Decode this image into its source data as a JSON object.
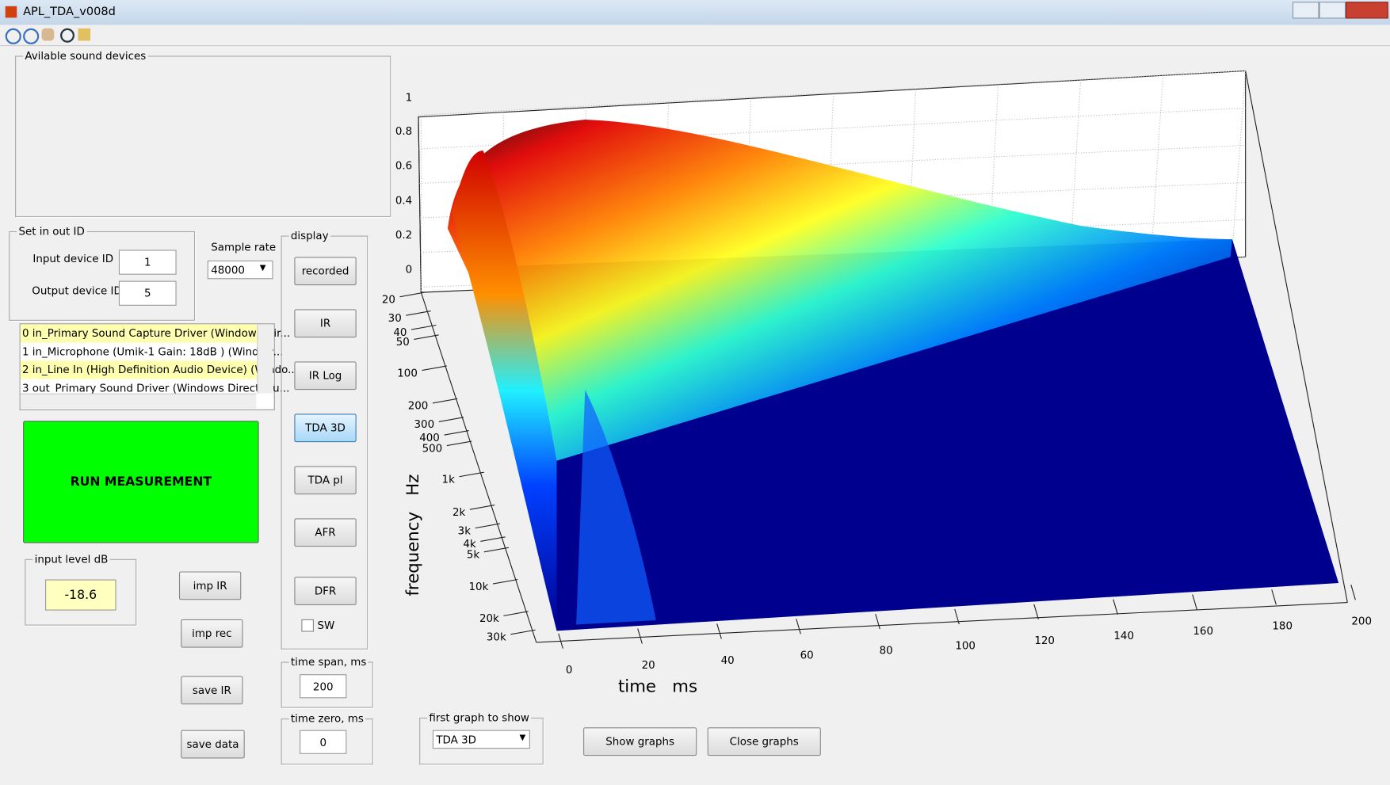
{
  "window": {
    "title": "APL_TDA_v008d"
  },
  "devices_panel": {
    "title": "Avilable sound devices"
  },
  "io_panel": {
    "title": "Set in out ID",
    "input_label": "Input device ID",
    "input_value": "1",
    "output_label": "Output device ID",
    "output_value": "5"
  },
  "sample_rate": {
    "label": "Sample rate",
    "value": "48000"
  },
  "device_list": [
    "0 in_Primary Sound Capture Driver (Windows Dir...",
    "1 in_Microphone (Umik-1  Gain: 18dB  ) (Window...",
    "2 in_Line In (High Definition Audio Device) (Windo...",
    "3 out_Primary Sound Driver (Windows DirectSou..."
  ],
  "run_button": "RUN MEASUREMENT",
  "input_level": {
    "title": "input level dB",
    "value": "-18.6"
  },
  "buttons": {
    "imp_ir": "imp IR",
    "imp_rec": "imp rec",
    "save_ir": "save IR",
    "save_data": "save data"
  },
  "display": {
    "title": "display",
    "buttons": [
      "recorded",
      "IR",
      "IR Log",
      "TDA 3D",
      "TDA pl",
      "AFR",
      "DFR"
    ],
    "sw": "SW"
  },
  "time_span": {
    "title": "time span, ms",
    "value": "200"
  },
  "time_zero": {
    "title": "time zero, ms",
    "value": "0"
  },
  "first_graph": {
    "title": "first graph to show",
    "value": "TDA 3D"
  },
  "show_graphs": "Show graphs",
  "close_graphs": "Close graphs",
  "plot": {
    "z_ticks": [
      "1",
      "0.8",
      "0.6",
      "0.4",
      "0.2",
      "0"
    ],
    "freq_ticks": [
      "20",
      "30",
      "40",
      "50",
      "100",
      "200",
      "300",
      "400",
      "500",
      "1k",
      "2k",
      "3k",
      "4k",
      "5k",
      "10k",
      "20k",
      "30k"
    ],
    "time_ticks": [
      "0",
      "20",
      "40",
      "60",
      "80",
      "100",
      "120",
      "140",
      "160",
      "180",
      "200"
    ],
    "x_label": "time   ms",
    "y_label": "frequency   Hz"
  }
}
